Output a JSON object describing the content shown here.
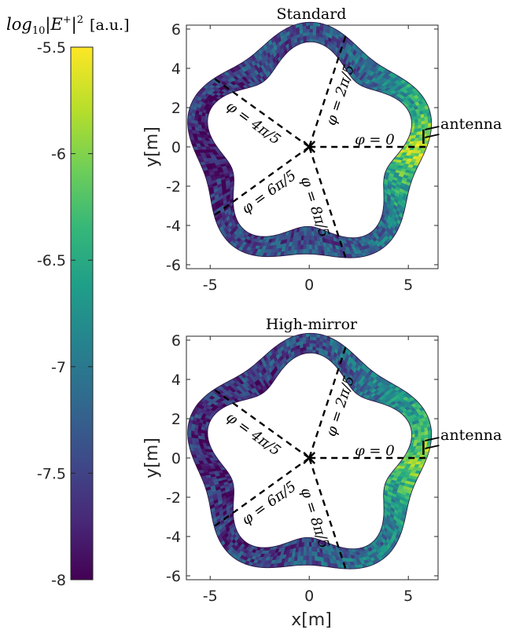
{
  "colorbar": {
    "title": "log10|E+|^2 [a.u.]",
    "title_parts": {
      "log": "log",
      "sub": "10",
      "field": "|E",
      "sup_plus": "+",
      "close": "|",
      "sup_2": "2",
      "unit": "[a.u.]"
    },
    "ticks": [
      "-5.5",
      "-6",
      "-6.5",
      "-7",
      "-7.5",
      "-8"
    ],
    "tick_values": [
      -5.5,
      -6,
      -6.5,
      -7,
      -7.5,
      -8
    ],
    "range": [
      -8,
      -5.5
    ],
    "colormap": [
      "#440154",
      "#482878",
      "#3e4989",
      "#31688e",
      "#26828e",
      "#1f9e89",
      "#35b779",
      "#6ece58",
      "#b5de2b",
      "#fde725"
    ]
  },
  "chart_data": [
    {
      "type": "heatmap",
      "title": "Standard",
      "xlabel": "",
      "ylabel": "y[m]",
      "xlim": [
        -6.2,
        6.5
      ],
      "ylim": [
        -6.2,
        6.2
      ],
      "xticks": [
        "-5",
        "0",
        "5"
      ],
      "xtick_values": [
        -5,
        0,
        5
      ],
      "yticks": [
        "6",
        "4",
        "2",
        "0",
        "-2",
        "-4",
        "-6"
      ],
      "ytick_values": [
        6,
        4,
        2,
        0,
        -2,
        -4,
        -6
      ],
      "annotation": "antenna",
      "angle_labels": [
        "φ = 0",
        "φ = 2π/5",
        "φ = 4π/5",
        "φ = 6π/5",
        "φ = 8π/5"
      ],
      "angles_rad": [
        0,
        1.2566,
        2.5133,
        3.7699,
        5.0265
      ]
    },
    {
      "type": "heatmap",
      "title": "High-mirror",
      "xlabel": "x[m]",
      "ylabel": "y[m]",
      "xlim": [
        -6.2,
        6.5
      ],
      "ylim": [
        -6.2,
        6.2
      ],
      "xticks": [
        "-5",
        "0",
        "5"
      ],
      "xtick_values": [
        -5,
        0,
        5
      ],
      "yticks": [
        "6",
        "4",
        "2",
        "0",
        "-2",
        "-4",
        "-6"
      ],
      "ytick_values": [
        6,
        4,
        2,
        0,
        -2,
        -4,
        -6
      ],
      "annotation": "antenna",
      "angle_labels": [
        "φ = 0",
        "φ = 2π/5",
        "φ = 4π/5",
        "φ = 6π/5",
        "φ = 8π/5"
      ],
      "angles_rad": [
        0,
        1.2566,
        2.5133,
        3.7699,
        5.0265
      ]
    }
  ]
}
